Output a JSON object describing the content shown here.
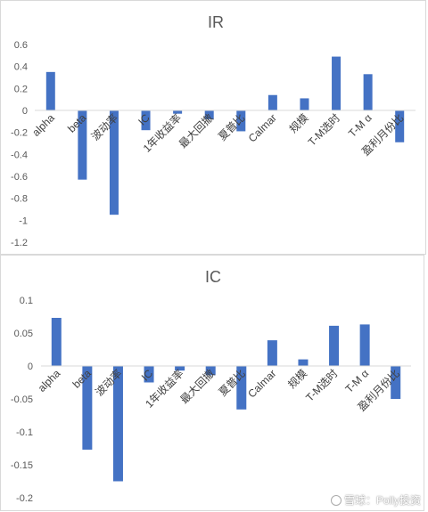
{
  "chart_data": [
    {
      "type": "bar",
      "title": "IR",
      "categories": [
        "alpha",
        "beta",
        "波动率",
        "IC",
        "1年收益率",
        "最大回撤",
        "夏普比",
        "Calmar",
        "规模",
        "T-M选时",
        "T-M α",
        "盈利月份比"
      ],
      "values": [
        0.35,
        -0.63,
        -0.95,
        -0.18,
        -0.03,
        -0.08,
        -0.19,
        0.14,
        0.11,
        0.49,
        0.33,
        -0.29
      ],
      "ylim": [
        -1.2,
        0.6
      ],
      "yticks": [
        0.6,
        0.4,
        0.2,
        0,
        -0.2,
        -0.4,
        -0.6,
        -0.8,
        -1,
        -1.2
      ],
      "ytick_labels": [
        "0.6",
        "0.4",
        "0.2",
        "0",
        "-0.2",
        "-0.4",
        "-0.6",
        "-0.8",
        "-1",
        "-1.2"
      ],
      "bar_color": "#4472C4",
      "grid": false,
      "legend": "none"
    },
    {
      "type": "bar",
      "title": "IC",
      "categories": [
        "alpha",
        "beta",
        "波动率",
        "IC",
        "1年收益率",
        "最大回撤",
        "夏普比",
        "Calmar",
        "规模",
        "T-M选时",
        "T-M α",
        "盈利月份比"
      ],
      "values": [
        0.073,
        -0.127,
        -0.175,
        -0.025,
        -0.007,
        -0.014,
        -0.066,
        0.039,
        0.01,
        0.061,
        0.063,
        -0.05
      ],
      "ylim": [
        -0.2,
        0.1
      ],
      "yticks": [
        0.1,
        0.05,
        0,
        -0.05,
        -0.1,
        -0.15,
        -0.2
      ],
      "ytick_labels": [
        "0.1",
        "0.05",
        "0",
        "-0.05",
        "-0.1",
        "-0.15",
        "-0.2"
      ],
      "bar_color": "#4472C4",
      "grid": false,
      "legend": "none"
    }
  ],
  "watermark": {
    "text": "雪球：Polly投资",
    "icon": "snowball-logo-icon"
  }
}
